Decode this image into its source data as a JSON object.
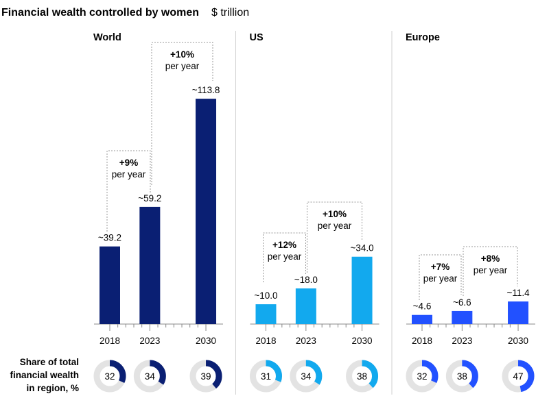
{
  "chart_data": {
    "type": "bar",
    "title": "Financial wealth controlled by women",
    "unit": "$ trillion",
    "share_label": [
      "Share of total",
      "financial wealth",
      "in region, %"
    ],
    "categories": [
      "2018",
      "2023",
      "2030"
    ],
    "panels": [
      {
        "name": "World",
        "color": "#0a1f73",
        "values": [
          39.2,
          59.2,
          113.8
        ],
        "labels": [
          "~39.2",
          "~59.2",
          "~113.8"
        ],
        "growth": [
          {
            "rate": "+9%",
            "note": "per year"
          },
          {
            "rate": "+10%",
            "note": "per year"
          }
        ],
        "share": [
          32,
          34,
          39
        ]
      },
      {
        "name": "US",
        "color": "#12a9ee",
        "values": [
          10.0,
          18.0,
          34.0
        ],
        "labels": [
          "~10.0",
          "~18.0",
          "~34.0"
        ],
        "growth": [
          {
            "rate": "+12%",
            "note": "per year"
          },
          {
            "rate": "+10%",
            "note": "per year"
          }
        ],
        "share": [
          31,
          34,
          38
        ]
      },
      {
        "name": "Europe",
        "color": "#2251ff",
        "values": [
          4.6,
          6.6,
          11.4
        ],
        "labels": [
          "~4.6",
          "~6.6",
          "~11.4"
        ],
        "growth": [
          {
            "rate": "+7%",
            "note": "per year"
          },
          {
            "rate": "+8%",
            "note": "per year"
          }
        ],
        "share": [
          32,
          38,
          47
        ]
      }
    ],
    "ylim": [
      0,
      115
    ]
  }
}
